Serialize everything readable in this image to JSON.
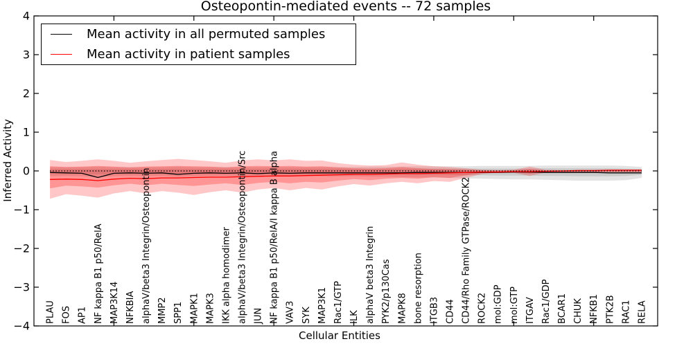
{
  "title": "Osteopontin-mediated events -- 72 samples",
  "axes": {
    "xlabel": "Cellular Entities",
    "ylabel": "Inferred Activity",
    "ytick_labels": [
      "4",
      "3",
      "2",
      "1",
      "0",
      "−1",
      "−2",
      "−3",
      "−4"
    ],
    "ytick_values": [
      4,
      3,
      2,
      1,
      0,
      -1,
      -2,
      -3,
      -4
    ]
  },
  "legend": {
    "items": [
      {
        "label": "Mean activity in all permuted samples",
        "color": "#000000"
      },
      {
        "label": "Mean activity in patient samples",
        "color": "#ff0000"
      }
    ]
  },
  "chart_data": {
    "type": "line",
    "title": "Osteopontin-mediated events -- 72 samples",
    "xlabel": "Cellular Entities",
    "ylabel": "Inferred Activity",
    "ylim": [
      -4,
      4
    ],
    "xlim": [
      0,
      39
    ],
    "grid": false,
    "legend_position": "upper left",
    "zero_line": {
      "y": 0,
      "style": "dotted",
      "color": "#000000"
    },
    "x_major_ticks": [
      5,
      10,
      15,
      20,
      25,
      30,
      35
    ],
    "categories": [
      "PLAU",
      "FOS",
      "AP1",
      "NF kappa B1 p50/RelA",
      "MAP3K14",
      "NFKBIA",
      "alphaV/beta3 Integrin/Osteopontin",
      "MMP2",
      "SPP1",
      "MAPK1",
      "MAPK3",
      "IKK alpha homodimer",
      "alphaV/beta3 Integrin/Osteopontin/Src",
      "JUN",
      "NF kappa B1 p50/RelA/I kappa B alpha",
      "VAV3",
      "SYK",
      "MAP3K1",
      "Rac1/GTP",
      "ILK",
      "alphaV beta3 Integrin",
      "PYK2/p130Cas",
      "MAPK8",
      "bone resorption",
      "ITGB3",
      "CD44",
      "CD44/Rho Family GTPase/ROCK2",
      "ROCK2",
      "mol:GDP",
      "mol:GTP",
      "ITGAV",
      "Rac1/GDP",
      "BCAR1",
      "CHUK",
      "NFKB1",
      "PTK2B",
      "RAC1",
      "RELA"
    ],
    "series": [
      {
        "name": "Mean activity in all permuted samples",
        "color": "#000000",
        "values": [
          -0.04,
          -0.05,
          -0.06,
          -0.17,
          -0.06,
          -0.05,
          -0.06,
          -0.05,
          -0.09,
          -0.06,
          -0.05,
          -0.06,
          -0.05,
          -0.07,
          -0.05,
          -0.06,
          -0.05,
          -0.05,
          -0.05,
          -0.05,
          -0.05,
          -0.05,
          -0.05,
          -0.04,
          -0.04,
          -0.04,
          -0.04,
          -0.04,
          -0.04,
          -0.03,
          -0.03,
          -0.04,
          -0.04,
          -0.04,
          -0.04,
          -0.05,
          -0.05,
          -0.05
        ]
      },
      {
        "name": "Mean activity in patient samples",
        "color": "#ff0000",
        "values": [
          -0.22,
          -0.21,
          -0.22,
          -0.25,
          -0.21,
          -0.19,
          -0.2,
          -0.18,
          -0.18,
          -0.17,
          -0.16,
          -0.16,
          -0.15,
          -0.14,
          -0.13,
          -0.13,
          -0.12,
          -0.11,
          -0.1,
          -0.09,
          -0.09,
          -0.08,
          -0.07,
          -0.07,
          -0.06,
          -0.05,
          -0.04,
          -0.03,
          -0.03,
          -0.02,
          -0.02,
          -0.01,
          0.0,
          0.01,
          0.01,
          0.02,
          0.02,
          0.02
        ]
      }
    ],
    "bands": [
      {
        "name": "permuted-spread-outer",
        "color": "rgba(0,0,0,0.11)",
        "upper": [
          0.1,
          0.1,
          0.1,
          0.11,
          0.1,
          0.1,
          0.1,
          0.1,
          0.11,
          0.1,
          0.1,
          0.1,
          0.1,
          0.1,
          0.1,
          0.1,
          0.1,
          0.1,
          0.1,
          0.1,
          0.11,
          0.11,
          0.11,
          0.12,
          0.12,
          0.12,
          0.12,
          0.13,
          0.13,
          0.13,
          0.13,
          0.14,
          0.14,
          0.14,
          0.14,
          0.14,
          0.13,
          0.1
        ],
        "lower": [
          -0.14,
          -0.13,
          -0.14,
          -0.16,
          -0.14,
          -0.13,
          -0.14,
          -0.13,
          -0.15,
          -0.14,
          -0.13,
          -0.13,
          -0.14,
          -0.13,
          -0.13,
          -0.14,
          -0.13,
          -0.14,
          -0.14,
          -0.14,
          -0.15,
          -0.15,
          -0.16,
          -0.17,
          -0.17,
          -0.18,
          -0.19,
          -0.2,
          -0.21,
          -0.22,
          -0.22,
          -0.23,
          -0.24,
          -0.25,
          -0.25,
          -0.25,
          -0.24,
          -0.18
        ]
      },
      {
        "name": "permuted-spread-inner",
        "color": "rgba(0,0,0,0.10)",
        "upper": [
          0.05,
          0.05,
          0.05,
          0.05,
          0.05,
          0.05,
          0.05,
          0.05,
          0.05,
          0.05,
          0.05,
          0.05,
          0.05,
          0.05,
          0.05,
          0.05,
          0.05,
          0.05,
          0.05,
          0.05,
          0.05,
          0.05,
          0.05,
          0.06,
          0.06,
          0.06,
          0.06,
          0.06,
          0.06,
          0.06,
          0.06,
          0.07,
          0.07,
          0.07,
          0.07,
          0.07,
          0.06,
          0.05
        ],
        "lower": [
          -0.08,
          -0.08,
          -0.08,
          -0.09,
          -0.08,
          -0.08,
          -0.08,
          -0.08,
          -0.08,
          -0.08,
          -0.08,
          -0.08,
          -0.08,
          -0.08,
          -0.08,
          -0.08,
          -0.08,
          -0.08,
          -0.08,
          -0.08,
          -0.09,
          -0.09,
          -0.09,
          -0.1,
          -0.1,
          -0.1,
          -0.11,
          -0.11,
          -0.12,
          -0.12,
          -0.12,
          -0.13,
          -0.13,
          -0.14,
          -0.14,
          -0.14,
          -0.13,
          -0.1
        ]
      },
      {
        "name": "patient-spread-outer",
        "color": "rgba(255,0,0,0.22)",
        "upper": [
          0.28,
          0.23,
          0.26,
          0.3,
          0.26,
          0.21,
          0.25,
          0.28,
          0.31,
          0.28,
          0.25,
          0.21,
          0.27,
          0.3,
          0.27,
          0.3,
          0.26,
          0.27,
          0.2,
          0.16,
          0.14,
          0.15,
          0.22,
          0.16,
          0.12,
          0.1,
          0.07,
          0.03,
          0.02,
          0.03,
          0.11,
          0.03,
          0.02,
          0.02,
          0.02,
          0.02,
          0.02,
          0.02
        ],
        "lower": [
          -0.72,
          -0.6,
          -0.64,
          -0.69,
          -0.58,
          -0.52,
          -0.58,
          -0.52,
          -0.56,
          -0.62,
          -0.55,
          -0.5,
          -0.56,
          -0.48,
          -0.44,
          -0.5,
          -0.44,
          -0.48,
          -0.4,
          -0.34,
          -0.38,
          -0.32,
          -0.28,
          -0.32,
          -0.26,
          -0.28,
          -0.18,
          -0.08,
          -0.04,
          -0.05,
          -0.13,
          -0.04,
          -0.03,
          -0.03,
          -0.03,
          -0.03,
          -0.03,
          -0.03
        ]
      },
      {
        "name": "patient-spread-inner",
        "color": "rgba(255,0,0,0.25)",
        "upper": [
          0.12,
          0.1,
          0.11,
          0.13,
          0.11,
          0.09,
          0.11,
          0.12,
          0.13,
          0.12,
          0.11,
          0.09,
          0.12,
          0.13,
          0.12,
          0.13,
          0.11,
          0.12,
          0.09,
          0.07,
          0.06,
          0.07,
          0.1,
          0.07,
          0.05,
          0.04,
          0.03,
          0.01,
          0.01,
          0.01,
          0.05,
          0.01,
          0.01,
          0.01,
          0.01,
          0.01,
          0.01,
          0.01
        ],
        "lower": [
          -0.45,
          -0.38,
          -0.4,
          -0.43,
          -0.37,
          -0.33,
          -0.37,
          -0.33,
          -0.36,
          -0.39,
          -0.35,
          -0.32,
          -0.36,
          -0.31,
          -0.28,
          -0.32,
          -0.28,
          -0.3,
          -0.25,
          -0.21,
          -0.24,
          -0.2,
          -0.18,
          -0.2,
          -0.16,
          -0.18,
          -0.11,
          -0.05,
          -0.02,
          -0.03,
          -0.07,
          -0.02,
          -0.02,
          -0.02,
          -0.02,
          -0.02,
          -0.02,
          -0.02
        ]
      }
    ]
  }
}
